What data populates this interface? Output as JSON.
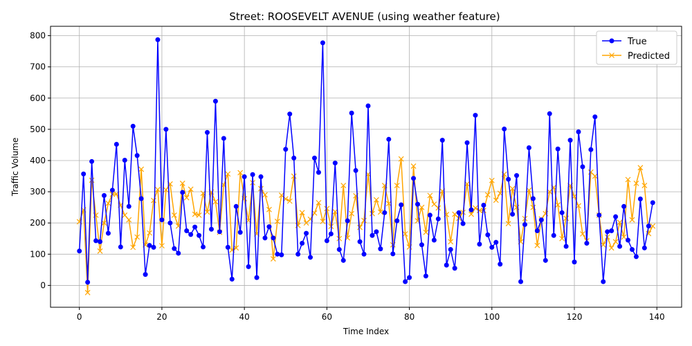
{
  "chart_data": {
    "type": "line",
    "title": "Street: ROOSEVELT AVENUE (using weather feature)",
    "xlabel": "Time Index",
    "ylabel": "Traffic Volume",
    "xlim": [
      -7,
      146
    ],
    "ylim": [
      -70,
      830
    ],
    "xticks": [
      0,
      20,
      40,
      60,
      80,
      100,
      120,
      140
    ],
    "yticks": [
      0,
      100,
      200,
      300,
      400,
      500,
      600,
      700,
      800
    ],
    "grid": true,
    "legend_position": "top-right",
    "series": [
      {
        "name": "True",
        "color": "#0000ff",
        "marker": "circle",
        "values": [
          110,
          357,
          10,
          397,
          143,
          140,
          288,
          167,
          305,
          452,
          123,
          401,
          253,
          510,
          416,
          278,
          35,
          128,
          122,
          787,
          210,
          500,
          200,
          118,
          103,
          298,
          175,
          163,
          187,
          160,
          123,
          490,
          180,
          590,
          172,
          471,
          122,
          20,
          253,
          170,
          348,
          60,
          355,
          25,
          348,
          152,
          188,
          152,
          100,
          98,
          436,
          549,
          408,
          100,
          135,
          167,
          90,
          408,
          362,
          777,
          143,
          165,
          392,
          115,
          80,
          207,
          552,
          368,
          140,
          100,
          575,
          160,
          172,
          117,
          233,
          468,
          101,
          207,
          258,
          12,
          25,
          343,
          260,
          130,
          30,
          225,
          145,
          213,
          465,
          65,
          115,
          55,
          233,
          198,
          457,
          242,
          545,
          132,
          257,
          162,
          122,
          138,
          68,
          501,
          340,
          228,
          352,
          12,
          195,
          441,
          278,
          175,
          210,
          80,
          550,
          160,
          437,
          233,
          125,
          465,
          75,
          492,
          380,
          135,
          435,
          540,
          225,
          12,
          172,
          175,
          220,
          125,
          253,
          145,
          115,
          92,
          277,
          120,
          190,
          265
        ]
      },
      {
        "name": "Predicted",
        "color": "#ffa500",
        "marker": "x",
        "values": [
          204,
          242,
          -23,
          337,
          225,
          110,
          200,
          263,
          292,
          293,
          257,
          225,
          210,
          122,
          155,
          372,
          130,
          168,
          272,
          307,
          127,
          306,
          325,
          225,
          190,
          327,
          281,
          308,
          228,
          225,
          295,
          235,
          299,
          268,
          170,
          322,
          357,
          113,
          120,
          361,
          278,
          208,
          329,
          165,
          310,
          290,
          243,
          85,
          205,
          289,
          277,
          270,
          350,
          192,
          233,
          200,
          212,
          232,
          265,
          205,
          246,
          189,
          236,
          150,
          320,
          152,
          230,
          287,
          186,
          208,
          356,
          230,
          274,
          235,
          320,
          262,
          130,
          320,
          405,
          165,
          123,
          382,
          207,
          250,
          170,
          288,
          260,
          248,
          302,
          227,
          140,
          228,
          215,
          234,
          325,
          228,
          248,
          240,
          240,
          290,
          336,
          273,
          295,
          356,
          198,
          310,
          250,
          140,
          214,
          305,
          250,
          128,
          213,
          230,
          300,
          314,
          258,
          150,
          215,
          320,
          285,
          255,
          165,
          143,
          363,
          350,
          225,
          130,
          155,
          120,
          140,
          202,
          155,
          339,
          210,
          327,
          377,
          320,
          166,
          190
        ]
      }
    ]
  }
}
